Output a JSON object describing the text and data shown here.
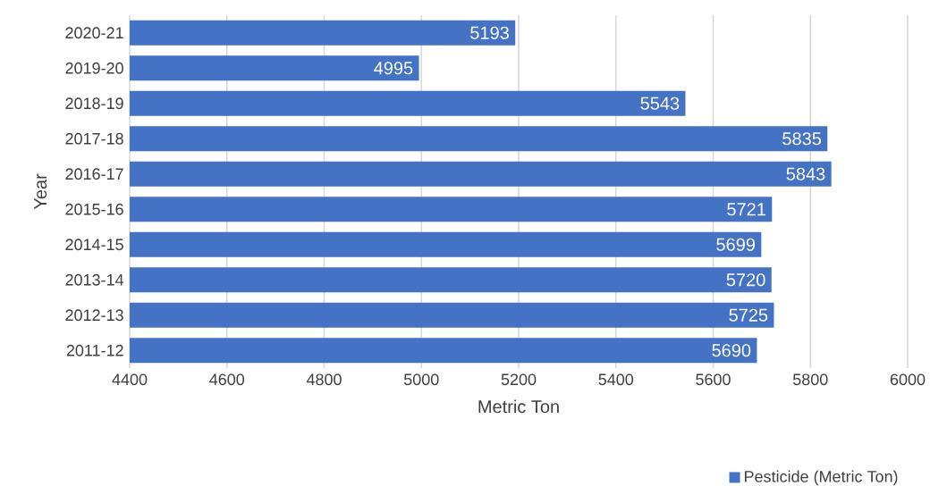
{
  "chart_data": {
    "type": "bar",
    "orientation": "horizontal",
    "xlabel": "Metric Ton",
    "ylabel": "Year",
    "categories": [
      "2020-21",
      "2019-20",
      "2018-19",
      "2017-18",
      "2016-17",
      "2015-16",
      "2014-15",
      "2013-14",
      "2012-13",
      "2011-12"
    ],
    "series": [
      {
        "name": "Pesticide (Metric Ton)",
        "color": "#4472c4",
        "values": [
          5193,
          4995,
          5543,
          5835,
          5843,
          5721,
          5699,
          5720,
          5725,
          5690
        ]
      }
    ],
    "xlim": [
      4400,
      6000
    ],
    "xticks": [
      4400,
      4600,
      4800,
      5000,
      5200,
      5400,
      5600,
      5800,
      6000
    ],
    "grid": "x",
    "legend": "bottom right",
    "data_labels": true
  }
}
